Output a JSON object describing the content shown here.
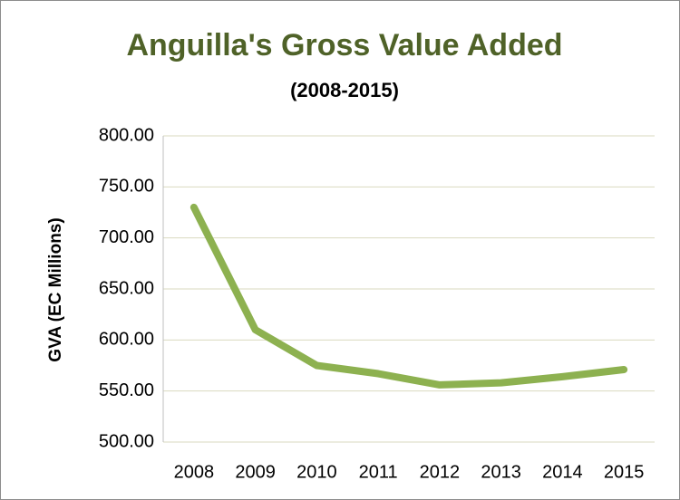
{
  "chart_data": {
    "type": "line",
    "title": "Anguilla's Gross Value Added",
    "subtitle": "(2008-2015)",
    "y_label": "GVA (EC Millions)",
    "categories": [
      "2008",
      "2009",
      "2010",
      "2011",
      "2012",
      "2013",
      "2014",
      "2015"
    ],
    "series": [
      {
        "name": "GVA",
        "color": "#8db150",
        "values": [
          730,
          610,
          575,
          567,
          556,
          558,
          564,
          571
        ]
      }
    ],
    "ylim": [
      500,
      800
    ],
    "yticks": [
      {
        "value": 500,
        "label": "500.00"
      },
      {
        "value": 550,
        "label": "550.00"
      },
      {
        "value": 600,
        "label": "600.00"
      },
      {
        "value": 650,
        "label": "650.00"
      },
      {
        "value": 700,
        "label": "700.00"
      },
      {
        "value": 750,
        "label": "750.00"
      },
      {
        "value": 800,
        "label": "800.00"
      }
    ],
    "grid": true
  }
}
